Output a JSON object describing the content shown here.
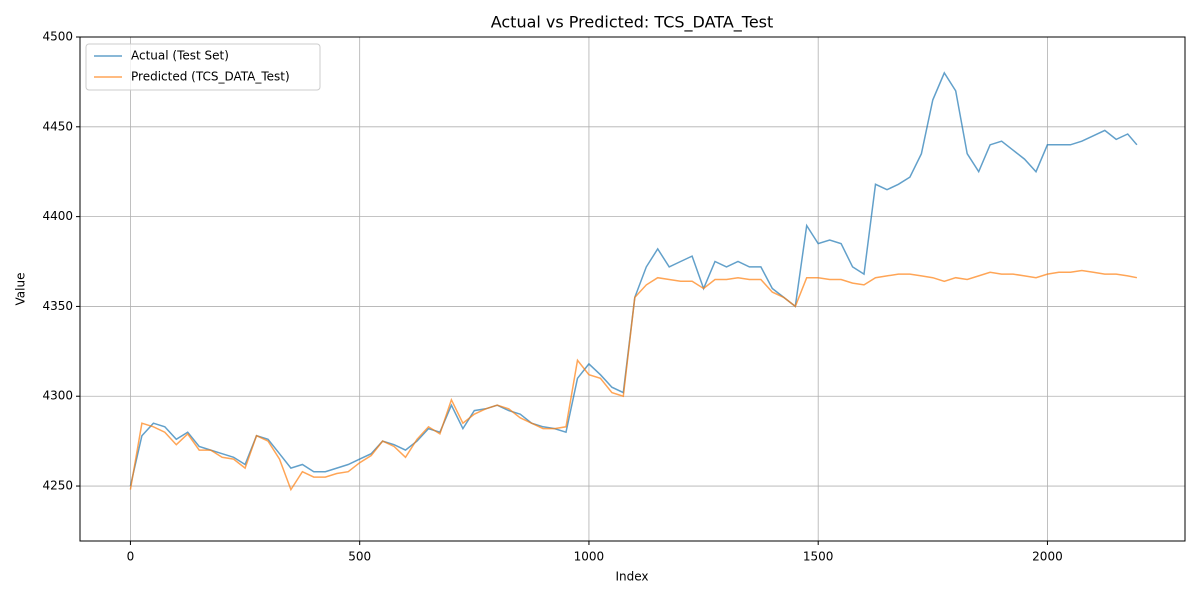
{
  "chart_data": {
    "type": "line",
    "title": "Actual vs Predicted: TCS_DATA_Test",
    "xlabel": "Index",
    "ylabel": "Value",
    "x": [
      0,
      25,
      50,
      75,
      100,
      125,
      150,
      175,
      200,
      225,
      250,
      275,
      300,
      325,
      350,
      375,
      400,
      425,
      450,
      475,
      500,
      525,
      550,
      575,
      600,
      625,
      650,
      675,
      700,
      725,
      750,
      775,
      800,
      825,
      850,
      875,
      900,
      925,
      950,
      975,
      1000,
      1025,
      1050,
      1075,
      1100,
      1125,
      1150,
      1175,
      1200,
      1225,
      1250,
      1275,
      1300,
      1325,
      1350,
      1375,
      1400,
      1425,
      1450,
      1475,
      1500,
      1525,
      1550,
      1575,
      1600,
      1625,
      1650,
      1675,
      1700,
      1725,
      1750,
      1775,
      1800,
      1825,
      1850,
      1875,
      1900,
      1925,
      1950,
      1975,
      2000,
      2025,
      2050,
      2075,
      2100,
      2125,
      2150,
      2175,
      2195
    ],
    "series": [
      {
        "name": "Actual (Test Set)",
        "color": "#1f77b4",
        "values": [
          4250,
          4278,
          4285,
          4283,
          4276,
          4280,
          4272,
          4270,
          4268,
          4266,
          4262,
          4278,
          4276,
          4268,
          4260,
          4262,
          4258,
          4258,
          4260,
          4262,
          4265,
          4268,
          4275,
          4273,
          4270,
          4275,
          4282,
          4280,
          4295,
          4282,
          4292,
          4293,
          4295,
          4292,
          4290,
          4285,
          4283,
          4282,
          4280,
          4310,
          4318,
          4312,
          4305,
          4302,
          4355,
          4372,
          4382,
          4372,
          4375,
          4378,
          4360,
          4375,
          4372,
          4375,
          4372,
          4372,
          4360,
          4355,
          4350,
          4395,
          4385,
          4387,
          4385,
          4372,
          4368,
          4418,
          4415,
          4418,
          4422,
          4435,
          4465,
          4480,
          4470,
          4435,
          4425,
          4440,
          4442,
          4437,
          4432,
          4425,
          4440,
          4440,
          4440,
          4442,
          4445,
          4448,
          4443,
          4446,
          4440
        ]
      },
      {
        "name": "Predicted (TCS_DATA_Test)",
        "color": "#ff7f0e",
        "values": [
          4248,
          4285,
          4283,
          4280,
          4273,
          4279,
          4270,
          4270,
          4266,
          4265,
          4260,
          4278,
          4275,
          4265,
          4248,
          4258,
          4255,
          4255,
          4257,
          4258,
          4263,
          4267,
          4275,
          4272,
          4266,
          4276,
          4283,
          4279,
          4298,
          4285,
          4290,
          4293,
          4295,
          4293,
          4288,
          4285,
          4282,
          4282,
          4283,
          4320,
          4312,
          4310,
          4302,
          4300,
          4355,
          4362,
          4366,
          4365,
          4364,
          4364,
          4360,
          4365,
          4365,
          4366,
          4365,
          4365,
          4358,
          4355,
          4350,
          4366,
          4366,
          4365,
          4365,
          4363,
          4362,
          4366,
          4367,
          4368,
          4368,
          4367,
          4366,
          4364,
          4366,
          4365,
          4367,
          4369,
          4368,
          4368,
          4367,
          4366,
          4368,
          4369,
          4369,
          4370,
          4369,
          4368,
          4368,
          4367,
          4366
        ]
      }
    ],
    "alpha": 0.7,
    "xlim": [
      -110,
      2300
    ],
    "ylim": [
      4219.4,
      4500
    ],
    "xticks": [
      0,
      500,
      1000,
      1500,
      2000
    ],
    "yticks": [
      4250,
      4300,
      4350,
      4400,
      4450,
      4500
    ],
    "grid": true,
    "legend": "upper left"
  }
}
